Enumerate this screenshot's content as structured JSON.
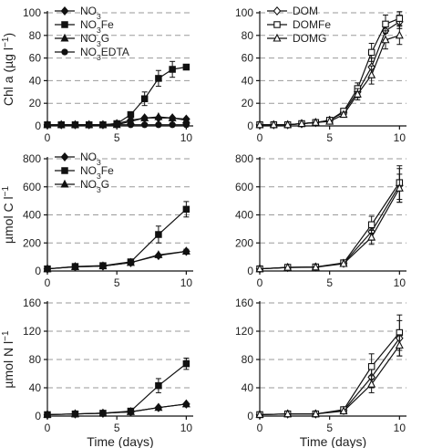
{
  "chart_data": [
    {
      "type": "line",
      "ylabel": "Chl a (µg l⁻¹)",
      "xlabel": "",
      "xlim": [
        0,
        10.5
      ],
      "xticks": [
        0,
        5,
        10
      ],
      "ylim": [
        0,
        100
      ],
      "yticks": [
        0,
        20,
        40,
        60,
        80,
        100
      ],
      "grid": "dashed-horizontal",
      "legend": "top-left",
      "series": [
        {
          "name": "NO₃",
          "marker": "diamond-filled",
          "x": [
            0,
            1,
            2,
            3,
            4,
            5,
            6,
            7,
            8,
            9,
            10
          ],
          "y": [
            1,
            1,
            1,
            1,
            1,
            2,
            5,
            7,
            7,
            7,
            6
          ]
        },
        {
          "name": "NO₃Fe",
          "marker": "square-filled",
          "x": [
            0,
            1,
            2,
            3,
            4,
            5,
            6,
            7,
            8,
            9,
            10
          ],
          "y": [
            1,
            1,
            1,
            1,
            1,
            2,
            10,
            24,
            42,
            50,
            52
          ],
          "err": [
            0,
            0,
            0,
            0,
            0,
            0,
            2,
            6,
            7,
            7,
            2
          ]
        },
        {
          "name": "NO₃G",
          "marker": "triangle-filled",
          "x": [
            0,
            1,
            2,
            3,
            4,
            5,
            6,
            7,
            8,
            9,
            10
          ],
          "y": [
            1,
            1,
            1,
            1,
            1,
            1,
            4,
            7,
            8,
            7,
            5
          ]
        },
        {
          "name": "NO₃EDTA",
          "marker": "circle-filled",
          "x": [
            0,
            1,
            2,
            3,
            4,
            5,
            6,
            7,
            8,
            9,
            10
          ],
          "y": [
            1,
            1,
            1,
            1,
            1,
            1,
            1,
            1,
            1,
            1,
            1
          ]
        }
      ]
    },
    {
      "type": "line",
      "ylabel": "",
      "xlabel": "",
      "xlim": [
        0,
        10.5
      ],
      "xticks": [
        0,
        5,
        10
      ],
      "ylim": [
        0,
        100
      ],
      "yticks": [
        0,
        20,
        40,
        60,
        80,
        100
      ],
      "grid": "dashed-horizontal",
      "legend": "top-left",
      "series": [
        {
          "name": "DOM",
          "marker": "diamond-open",
          "x": [
            0,
            1,
            2,
            3,
            4,
            5,
            6,
            7,
            8,
            9,
            10
          ],
          "y": [
            1,
            1,
            1,
            2,
            3,
            5,
            12,
            30,
            52,
            84,
            92
          ],
          "err": [
            0,
            0,
            0,
            0,
            0,
            0,
            2,
            5,
            8,
            8,
            6
          ]
        },
        {
          "name": "DOMFe",
          "marker": "square-open",
          "x": [
            0,
            1,
            2,
            3,
            4,
            5,
            6,
            7,
            8,
            9,
            10
          ],
          "y": [
            1,
            1,
            1,
            2,
            3,
            5,
            13,
            33,
            65,
            90,
            95
          ],
          "err": [
            0,
            0,
            0,
            0,
            0,
            0,
            2,
            5,
            8,
            8,
            6
          ]
        },
        {
          "name": "DOMG",
          "marker": "triangle-open",
          "x": [
            0,
            1,
            2,
            3,
            4,
            5,
            6,
            7,
            8,
            9,
            10
          ],
          "y": [
            1,
            1,
            1,
            2,
            3,
            4,
            10,
            28,
            45,
            76,
            80
          ],
          "err": [
            0,
            0,
            0,
            0,
            0,
            0,
            2,
            5,
            8,
            8,
            8
          ]
        }
      ]
    },
    {
      "type": "line",
      "ylabel": "µmol C l⁻¹",
      "xlabel": "",
      "xlim": [
        0,
        10.5
      ],
      "xticks": [
        0,
        5,
        10
      ],
      "ylim": [
        0,
        800
      ],
      "yticks": [
        0,
        200,
        400,
        600,
        800
      ],
      "grid": "dashed-horizontal",
      "legend": "top-left",
      "series": [
        {
          "name": "NO₃",
          "marker": "diamond-filled",
          "x": [
            0,
            2,
            4,
            6,
            8,
            10
          ],
          "y": [
            15,
            30,
            35,
            60,
            110,
            140
          ]
        },
        {
          "name": "NO₃Fe",
          "marker": "square-filled",
          "x": [
            0,
            2,
            4,
            6,
            8,
            10
          ],
          "y": [
            15,
            32,
            38,
            65,
            260,
            440
          ],
          "err": [
            0,
            0,
            0,
            0,
            60,
            55
          ]
        },
        {
          "name": "NO₃G",
          "marker": "triangle-filled",
          "x": [
            0,
            2,
            4,
            6,
            8,
            10
          ],
          "y": [
            15,
            30,
            35,
            60,
            115,
            140
          ],
          "err": [
            0,
            0,
            0,
            0,
            0,
            15
          ]
        }
      ]
    },
    {
      "type": "line",
      "ylabel": "",
      "xlabel": "",
      "xlim": [
        0,
        10.5
      ],
      "xticks": [
        0,
        5,
        10
      ],
      "ylim": [
        0,
        800
      ],
      "yticks": [
        0,
        200,
        400,
        600,
        800
      ],
      "grid": "dashed-horizontal",
      "legend": "none",
      "series": [
        {
          "name": "DOM",
          "marker": "diamond-open",
          "x": [
            0,
            2,
            4,
            6,
            8,
            10
          ],
          "y": [
            15,
            25,
            28,
            55,
            280,
            610
          ],
          "err": [
            0,
            0,
            0,
            0,
            60,
            120
          ]
        },
        {
          "name": "DOMFe",
          "marker": "square-open",
          "x": [
            0,
            2,
            4,
            6,
            8,
            10
          ],
          "y": [
            15,
            26,
            29,
            58,
            330,
            630
          ],
          "err": [
            0,
            0,
            0,
            0,
            60,
            120
          ]
        },
        {
          "name": "DOMG",
          "marker": "triangle-open",
          "x": [
            0,
            2,
            4,
            6,
            8,
            10
          ],
          "y": [
            15,
            25,
            27,
            52,
            240,
            590
          ],
          "err": [
            0,
            0,
            0,
            0,
            50,
            100
          ]
        }
      ]
    },
    {
      "type": "line",
      "ylabel": "µmol N l⁻¹",
      "xlabel": "Time (days)",
      "xlim": [
        0,
        10.5
      ],
      "xticks": [
        0,
        5,
        10
      ],
      "ylim": [
        0,
        160
      ],
      "yticks": [
        0,
        40,
        80,
        120,
        160
      ],
      "grid": "dashed-horizontal",
      "legend": "none",
      "series": [
        {
          "name": "NO₃",
          "marker": "diamond-filled",
          "x": [
            0,
            2,
            4,
            6,
            8,
            10
          ],
          "y": [
            2,
            3,
            4,
            6,
            12,
            17
          ]
        },
        {
          "name": "NO₃Fe",
          "marker": "square-filled",
          "x": [
            0,
            2,
            4,
            6,
            8,
            10
          ],
          "y": [
            2,
            3,
            4,
            7,
            43,
            74
          ],
          "err": [
            0,
            0,
            0,
            0,
            10,
            8
          ]
        },
        {
          "name": "NO₃G",
          "marker": "triangle-filled",
          "x": [
            0,
            2,
            4,
            6,
            8,
            10
          ],
          "y": [
            2,
            3,
            4,
            6,
            12,
            17
          ]
        }
      ]
    },
    {
      "type": "line",
      "ylabel": "",
      "xlabel": "Time (days)",
      "xlim": [
        0,
        10.5
      ],
      "xticks": [
        0,
        5,
        10
      ],
      "ylim": [
        0,
        160
      ],
      "yticks": [
        0,
        40,
        80,
        120,
        160
      ],
      "grid": "dashed-horizontal",
      "legend": "none",
      "series": [
        {
          "name": "DOM",
          "marker": "diamond-open",
          "x": [
            0,
            2,
            4,
            6,
            8,
            10
          ],
          "y": [
            2,
            3,
            3,
            8,
            55,
            110
          ],
          "err": [
            0,
            0,
            0,
            0,
            15,
            25
          ]
        },
        {
          "name": "DOMFe",
          "marker": "square-open",
          "x": [
            0,
            2,
            4,
            6,
            8,
            10
          ],
          "y": [
            2,
            3,
            3,
            9,
            70,
            118
          ],
          "err": [
            0,
            0,
            0,
            0,
            18,
            25
          ]
        },
        {
          "name": "DOMG",
          "marker": "triangle-open",
          "x": [
            0,
            2,
            4,
            6,
            8,
            10
          ],
          "y": [
            2,
            3,
            3,
            7,
            45,
            100
          ],
          "err": [
            0,
            0,
            0,
            0,
            12,
            15
          ]
        }
      ]
    }
  ]
}
